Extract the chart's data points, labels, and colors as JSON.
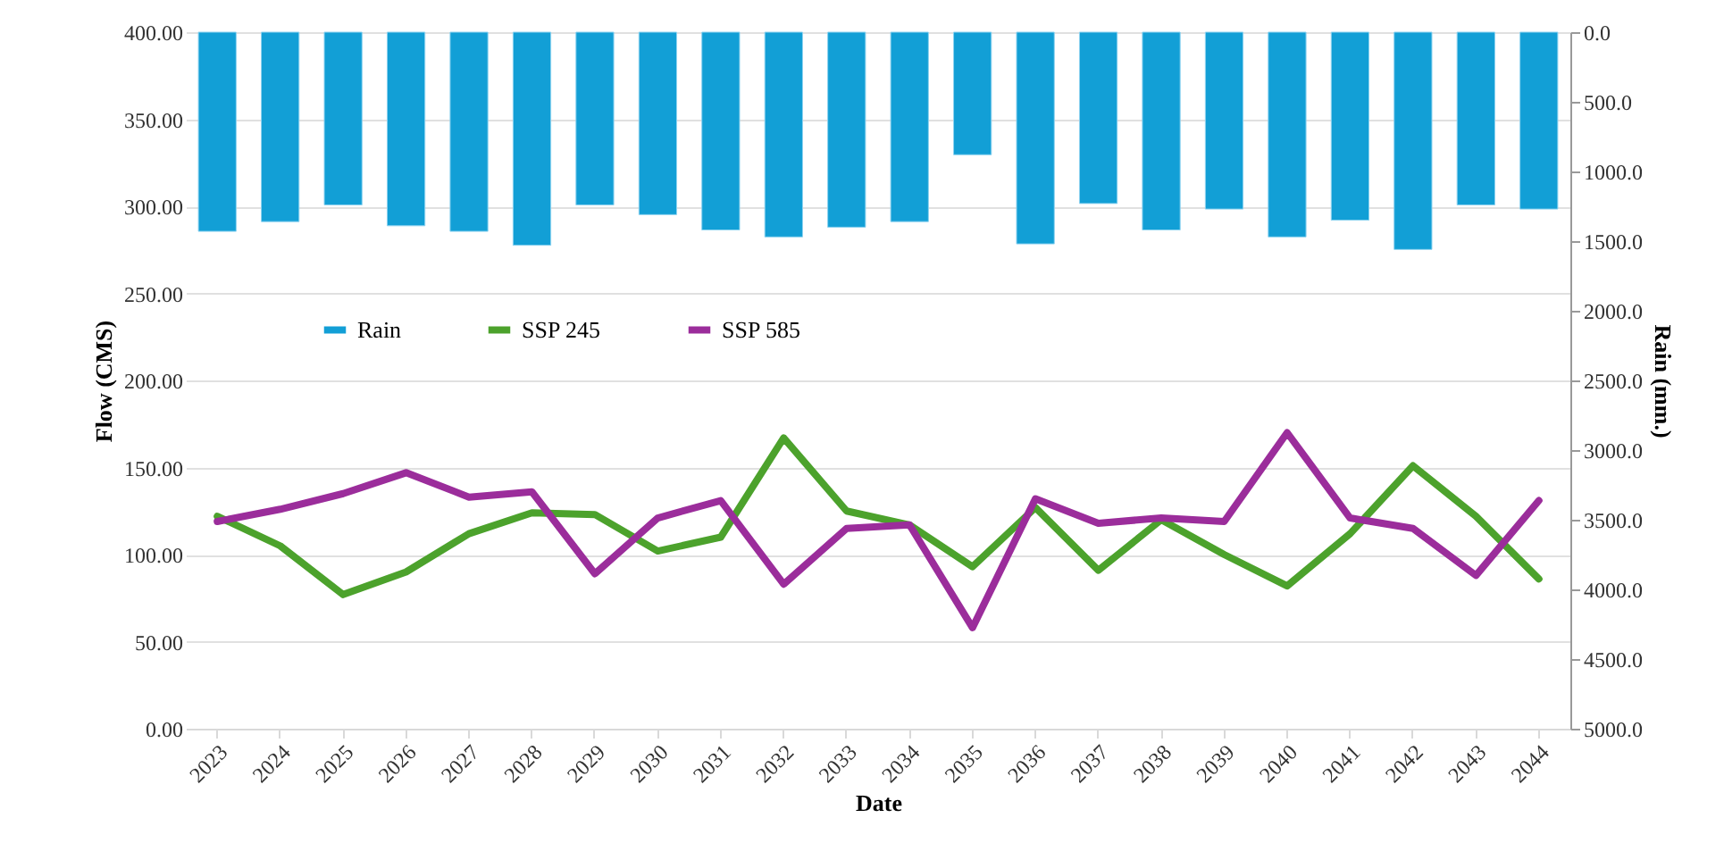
{
  "chart_data": {
    "type": "line",
    "xlabel": "Date",
    "ylabel": "Flow (CMS)",
    "y2label": "Rain (mm.)",
    "categories": [
      "2023",
      "2024",
      "2025",
      "2026",
      "2027",
      "2028",
      "2029",
      "2030",
      "2031",
      "2032",
      "2033",
      "2034",
      "2035",
      "2036",
      "2037",
      "2038",
      "2039",
      "2040",
      "2041",
      "2042",
      "2043",
      "2044"
    ],
    "series": [
      {
        "name": "Rain",
        "type": "bar",
        "axis": "y2",
        "color": "#129fd6",
        "values": [
          1430,
          1360,
          1240,
          1390,
          1430,
          1530,
          1240,
          1310,
          1420,
          1470,
          1400,
          1360,
          880,
          1520,
          1230,
          1420,
          1270,
          1470,
          1350,
          1560,
          1240,
          1270
        ]
      },
      {
        "name": "SSP 245",
        "color": "#4ca22c",
        "values": [
          122,
          105,
          77,
          90,
          112,
          124,
          123,
          102,
          110,
          167,
          125,
          117,
          93,
          127,
          91,
          120,
          100,
          82,
          112,
          151,
          122,
          86
        ]
      },
      {
        "name": "SSP 585",
        "color": "#9b2d9b",
        "values": [
          119,
          126,
          135,
          147,
          133,
          136,
          89,
          121,
          131,
          83,
          115,
          117,
          58,
          132,
          118,
          121,
          119,
          170,
          121,
          115,
          88,
          131
        ]
      }
    ],
    "ylim": [
      0,
      400
    ],
    "yticks": [
      {
        "value": 0,
        "label": "0.00"
      },
      {
        "value": 50,
        "label": "50.00"
      },
      {
        "value": 100,
        "label": "100.00"
      },
      {
        "value": 150,
        "label": "150.00"
      },
      {
        "value": 200,
        "label": "200.00"
      },
      {
        "value": 250,
        "label": "250.00"
      },
      {
        "value": 300,
        "label": "300.00"
      },
      {
        "value": 350,
        "label": "350.00"
      },
      {
        "value": 400,
        "label": "400.00"
      }
    ],
    "y2lim": [
      5000,
      0
    ],
    "y2ticks": [
      {
        "value": 0,
        "label": "0.0"
      },
      {
        "value": 500,
        "label": "500.0"
      },
      {
        "value": 1000,
        "label": "1000.0"
      },
      {
        "value": 1500,
        "label": "1500.0"
      },
      {
        "value": 2000,
        "label": "2000.0"
      },
      {
        "value": 2500,
        "label": "2500.0"
      },
      {
        "value": 3000,
        "label": "3000.0"
      },
      {
        "value": 3500,
        "label": "3500.0"
      },
      {
        "value": 4000,
        "label": "4000.0"
      },
      {
        "value": 4500,
        "label": "4500.0"
      },
      {
        "value": 5000,
        "label": "5000.0"
      }
    ],
    "grid": "y",
    "legend": "top left",
    "line_style": "solid"
  }
}
